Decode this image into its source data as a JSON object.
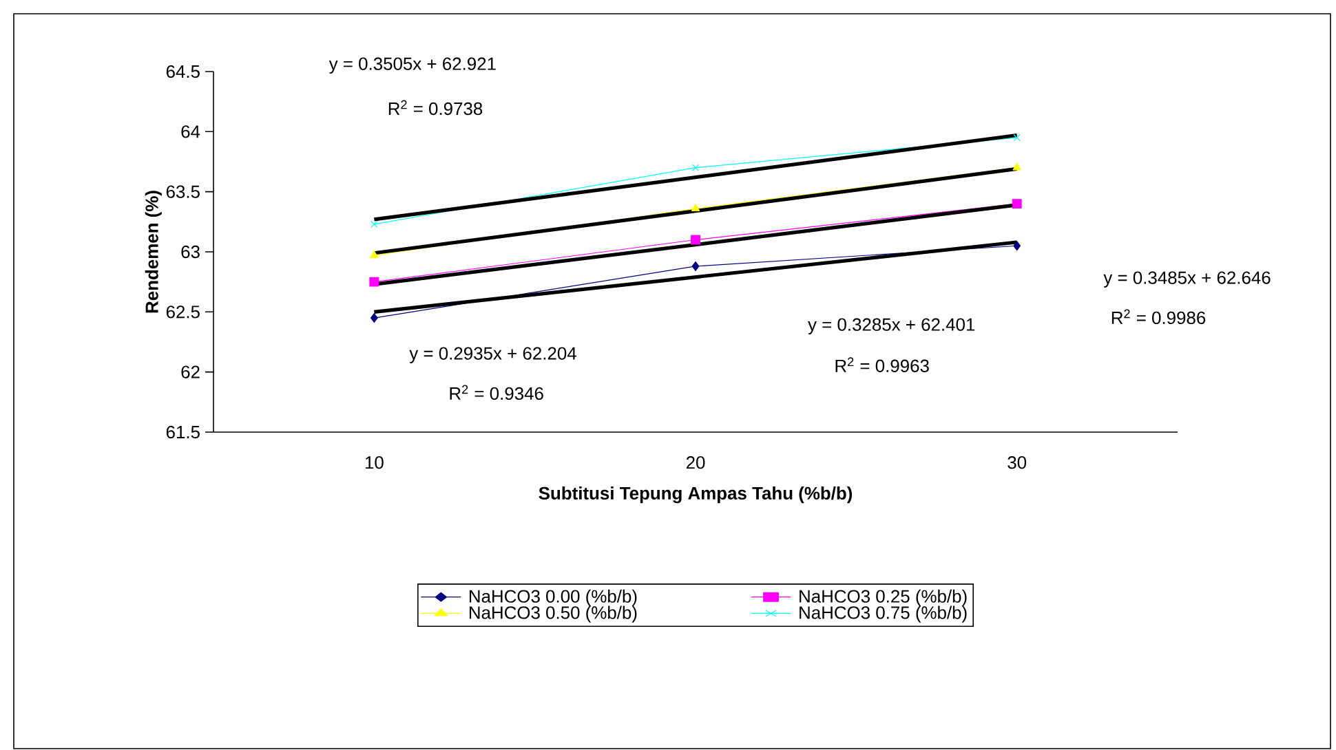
{
  "chart_data": {
    "type": "line",
    "xlabel": "Subtitusi Tepung Ampas Tahu (%b/b)",
    "ylabel": "Rendemen (%)",
    "categories": [
      "10",
      "20",
      "30"
    ],
    "ylim": [
      61.5,
      64.5
    ],
    "yticks": [
      61.5,
      62,
      62.5,
      63,
      63.5,
      64,
      64.5
    ],
    "grid": false,
    "legend": "bottom",
    "series": [
      {
        "name": "NaHCO3 0.00 (%b/b)",
        "color": "#000080",
        "marker": "diamond",
        "values": [
          62.45,
          62.88,
          63.05
        ]
      },
      {
        "name": "NaHCO3 0.25 (%b/b)",
        "color": "#ff00ff",
        "marker": "square",
        "values": [
          62.75,
          63.1,
          63.4
        ]
      },
      {
        "name": "NaHCO3 0.50 (%b/b)",
        "color": "#ffff00",
        "marker": "triangle",
        "values": [
          62.97,
          63.36,
          63.7
        ]
      },
      {
        "name": "NaHCO3 0.75 (%b/b)",
        "color": "#00ffff",
        "marker": "cross",
        "values": [
          63.23,
          63.7,
          63.95
        ]
      },
      {
        "type": "line",
        "color": "#000000",
        "marker": "none",
        "values": [
          62.5,
          62.79,
          63.08
        ]
      },
      {
        "type": "line",
        "color": "#000000",
        "marker": "none",
        "values": [
          62.73,
          63.06,
          63.39
        ]
      },
      {
        "type": "line",
        "color": "#000000",
        "marker": "none",
        "values": [
          62.99,
          63.34,
          63.69
        ]
      },
      {
        "type": "line",
        "color": "#000000",
        "marker": "none",
        "values": [
          63.27,
          63.62,
          63.97
        ]
      }
    ],
    "annotations": [
      "y = 0.3505x + 62.921",
      "R$^{2}$ = 0.9738",
      "y = 0.2935x + 62.204",
      "R$^{2}$ = 0.9346",
      "y = 0.3285x + 62.401",
      "R$^{2}$ = 0.9963",
      "y = 0.3485x + 62.646",
      "R$^{2}$ = 0.9986"
    ]
  }
}
